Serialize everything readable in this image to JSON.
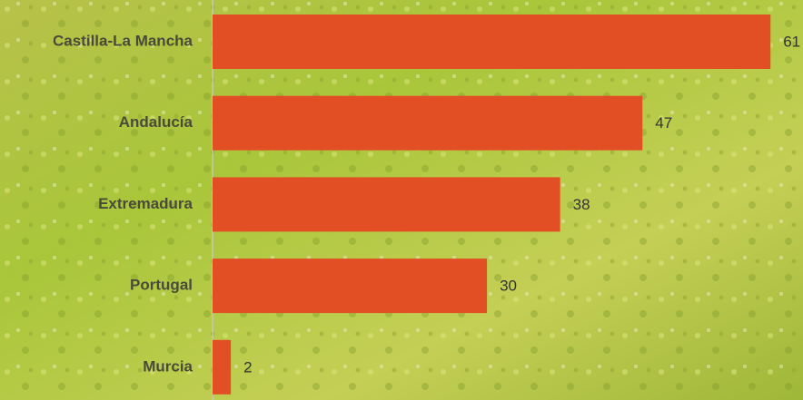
{
  "chart_data": {
    "type": "bar",
    "orientation": "horizontal",
    "categories": [
      "Castilla-La Mancha",
      "Andalucía",
      "Extremadura",
      "Portugal",
      "Murcia"
    ],
    "values": [
      61,
      47,
      38,
      30,
      2
    ],
    "color": "#e34f24",
    "xlim": [
      0,
      65
    ]
  }
}
